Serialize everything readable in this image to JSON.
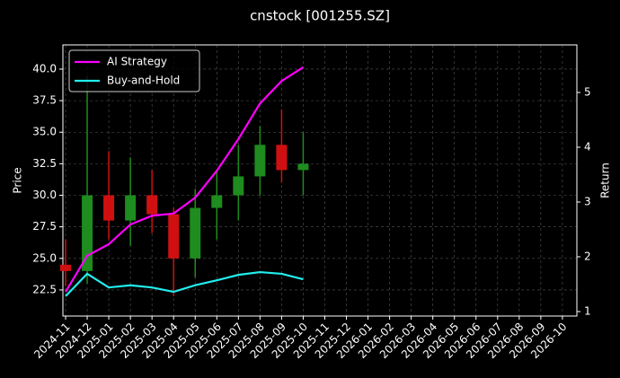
{
  "chart_data": {
    "type": "candlestick",
    "title": "cnstock [001255.SZ]",
    "y_label": "Price",
    "y2_label": "Return",
    "x": [
      "2024-11",
      "2024-12",
      "2025-01",
      "2025-02",
      "2025-03",
      "2025-04",
      "2025-05",
      "2025-06",
      "2025-07",
      "2025-08",
      "2025-09",
      "2025-10"
    ],
    "open": [
      24.5,
      24.0,
      30.0,
      28.0,
      30.0,
      28.5,
      25.0,
      29.0,
      30.0,
      31.5,
      34.0,
      32.0
    ],
    "high": [
      26.5,
      39.5,
      33.5,
      33.0,
      32.0,
      29.0,
      30.5,
      32.0,
      34.0,
      35.5,
      36.8,
      35.0
    ],
    "low": [
      22.8,
      23.0,
      26.5,
      26.0,
      27.0,
      22.0,
      23.5,
      26.5,
      28.0,
      30.0,
      31.0,
      30.0
    ],
    "close": [
      24.0,
      30.0,
      28.0,
      30.0,
      28.5,
      25.0,
      29.0,
      30.0,
      31.5,
      34.0,
      32.0,
      32.5
    ],
    "up_color": "#1e8c1e",
    "down_color": "#d01010",
    "series": [
      {
        "name": "AI Strategy",
        "color": "#ff00ff",
        "axis": "y2",
        "values": [
          1.36,
          2.02,
          2.23,
          2.59,
          2.75,
          2.79,
          3.08,
          3.57,
          4.15,
          4.8,
          5.21,
          5.46
        ]
      },
      {
        "name": "Buy-and-Hold",
        "color": "#22eeee",
        "axis": "y2",
        "values": [
          1.28,
          1.69,
          1.44,
          1.48,
          1.44,
          1.36,
          1.48,
          1.57,
          1.67,
          1.72,
          1.69,
          1.59
        ]
      }
    ],
    "xticks": [
      "2024-11",
      "2024-12",
      "2025-01",
      "2025-02",
      "2025-03",
      "2025-04",
      "2025-05",
      "2025-06",
      "2025-07",
      "2025-08",
      "2025-09",
      "2025-10",
      "2025-11",
      "2025-12",
      "2026-01",
      "2026-02",
      "2026-03",
      "2026-04",
      "2026-05",
      "2026-06",
      "2026-07",
      "2026-08",
      "2026-09",
      "2026-10"
    ],
    "ylim": [
      20.43,
      41.92
    ],
    "yticks": [
      22.5,
      {
        "value": 25,
        "label": "25.0"
      },
      27.5,
      {
        "value": 30,
        "label": "30.0"
      },
      32.5,
      {
        "value": 35,
        "label": "35.0"
      },
      37.5,
      {
        "value": 40,
        "label": "40.0"
      }
    ],
    "y2lim": [
      0.918,
      5.869
    ],
    "y2ticks": [
      1,
      2,
      3,
      4,
      5
    ],
    "grid": true,
    "legend": "upper left"
  }
}
